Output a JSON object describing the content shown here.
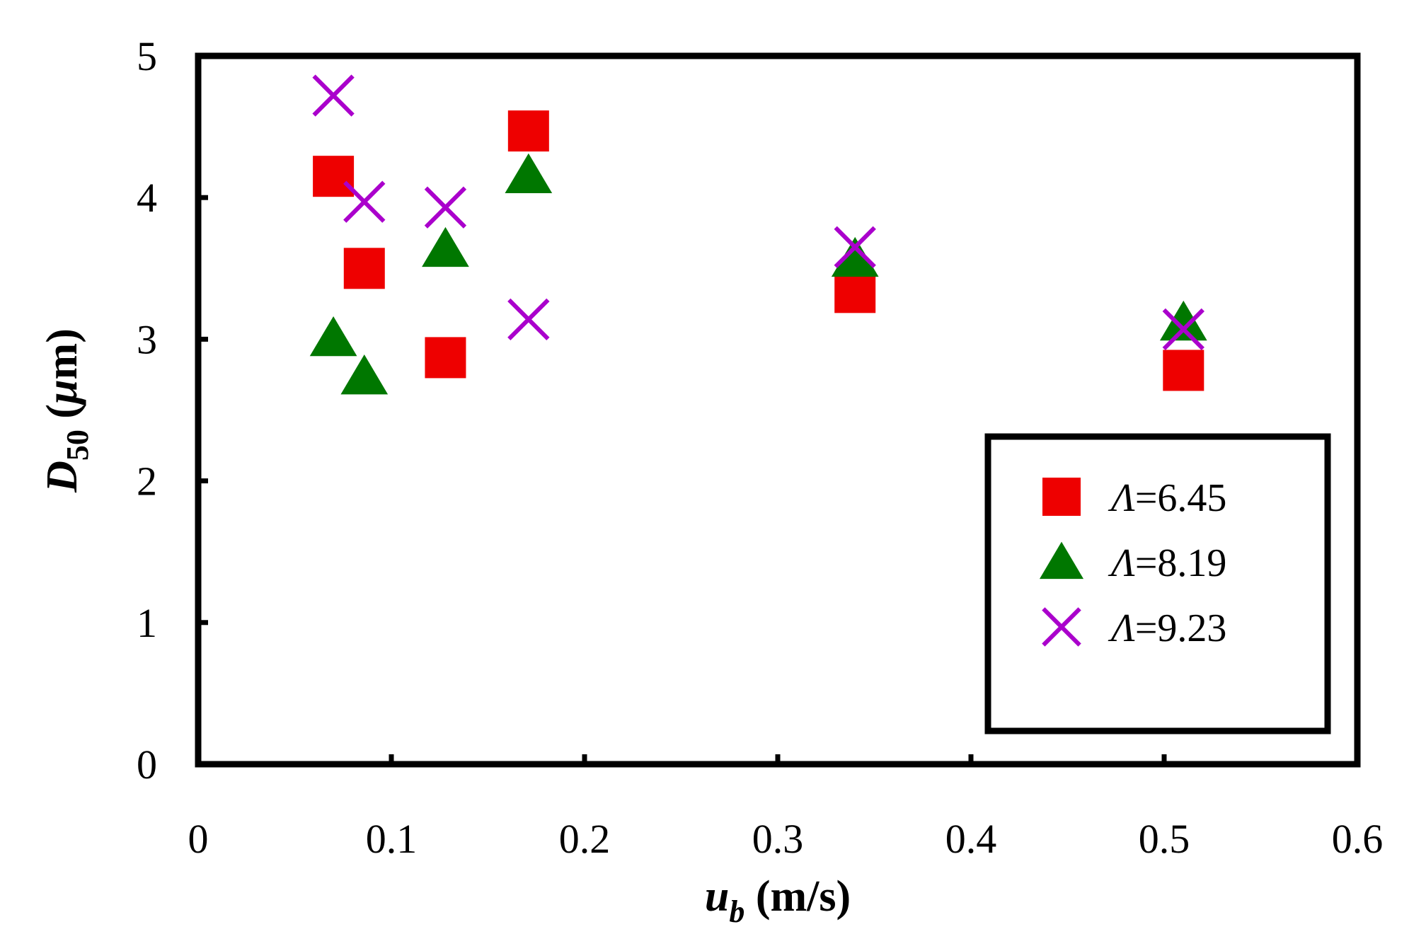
{
  "chart_data": {
    "type": "scatter",
    "title": "",
    "xlabel": {
      "main": "u",
      "sub": "b",
      "unit": "(m/s)"
    },
    "ylabel": {
      "main": "D",
      "sub": "50",
      "unit_open": "(",
      "unit_mu": "μ",
      "unit_rest": "m)"
    },
    "xlim": [
      0,
      0.6
    ],
    "ylim": [
      0,
      5
    ],
    "x_ticks": [
      0,
      0.1,
      0.2,
      0.3,
      0.4,
      0.5,
      0.6
    ],
    "x_tick_labels": [
      "0",
      "0.1",
      "0.2",
      "0.3",
      "0.4",
      "0.5",
      "0.6"
    ],
    "y_ticks": [
      0,
      1,
      2,
      3,
      4,
      5
    ],
    "y_tick_labels": [
      "0",
      "1",
      "2",
      "3",
      "4",
      "5"
    ],
    "grid": false,
    "legend_position": "bottom-right",
    "series": [
      {
        "name": "Λ=6.45",
        "label_symbol": "Λ",
        "label_value": "=6.45",
        "marker": "square",
        "color": "#ee0000",
        "points": [
          {
            "x": 0.07,
            "y": 4.15
          },
          {
            "x": 0.086,
            "y": 3.5
          },
          {
            "x": 0.128,
            "y": 2.87
          },
          {
            "x": 0.171,
            "y": 4.47
          },
          {
            "x": 0.34,
            "y": 3.33
          },
          {
            "x": 0.51,
            "y": 2.78
          }
        ]
      },
      {
        "name": "Λ=8.19",
        "label_symbol": "Λ",
        "label_value": "=8.19",
        "marker": "triangle",
        "color": "#007700",
        "points": [
          {
            "x": 0.07,
            "y": 3.01
          },
          {
            "x": 0.086,
            "y": 2.74
          },
          {
            "x": 0.128,
            "y": 3.64
          },
          {
            "x": 0.171,
            "y": 4.16
          },
          {
            "x": 0.34,
            "y": 3.57
          },
          {
            "x": 0.51,
            "y": 3.12
          }
        ]
      },
      {
        "name": "Λ=9.23",
        "label_symbol": "Λ",
        "label_value": "=9.23",
        "marker": "x",
        "color": "#aa00cc",
        "points": [
          {
            "x": 0.07,
            "y": 4.72
          },
          {
            "x": 0.086,
            "y": 3.97
          },
          {
            "x": 0.128,
            "y": 3.93
          },
          {
            "x": 0.171,
            "y": 3.14
          },
          {
            "x": 0.34,
            "y": 3.65
          },
          {
            "x": 0.51,
            "y": 3.07
          }
        ]
      }
    ]
  }
}
